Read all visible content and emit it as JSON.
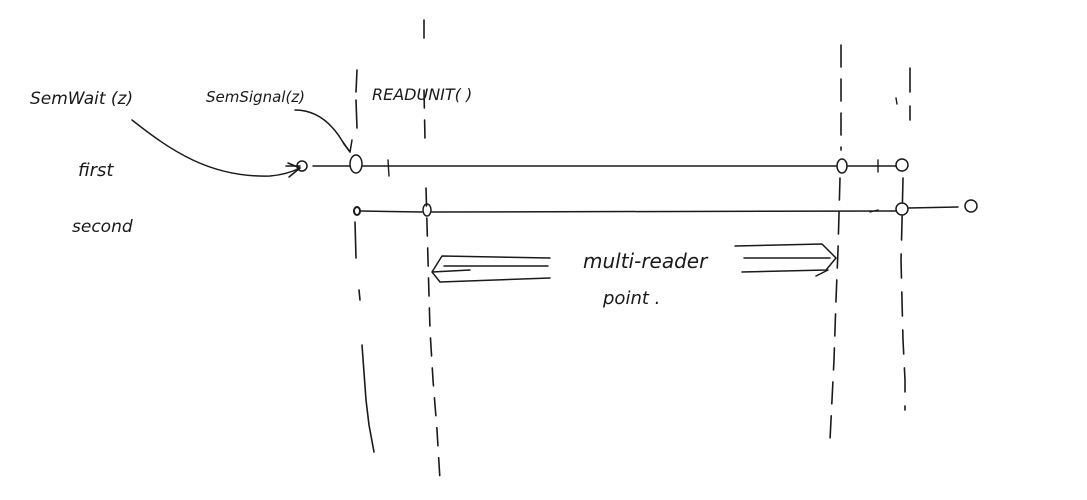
{
  "labels": {
    "semwait": "SemWait (z)",
    "semsignal": "SemSignal(z)",
    "readunit": "READUNIT( )",
    "first": "first",
    "second": "second",
    "multi_reader_line1": "multi-reader",
    "multi_reader_line2": "point ."
  },
  "colors": {
    "ink": "#1a1a1a",
    "background": "#ffffff"
  }
}
